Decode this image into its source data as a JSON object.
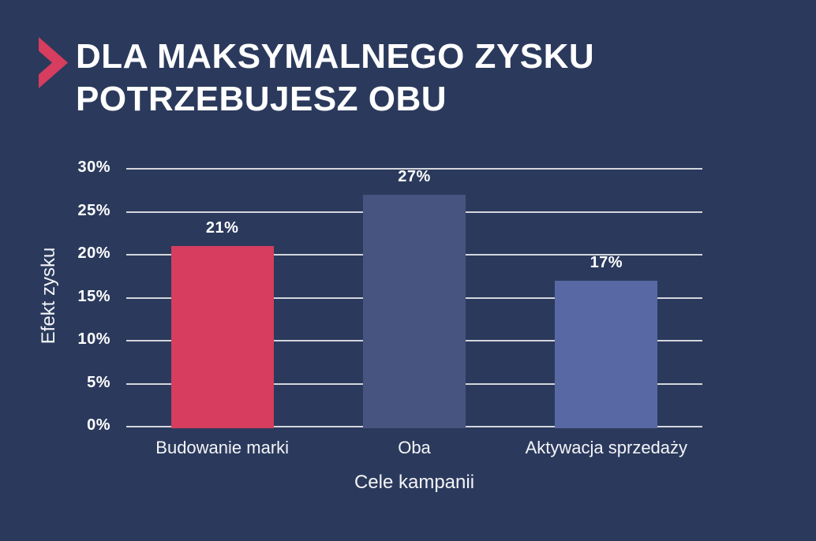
{
  "slide": {
    "background_color": "#2B3A5C",
    "accent_color": "#D63D5E"
  },
  "header": {
    "title_line1": "DLA MAKSYMALNEGO ZYSKU",
    "title_line2": "POTRZEBUJESZ OBU"
  },
  "chart_data": {
    "type": "bar",
    "categories": [
      "Budowanie marki",
      "Oba",
      "Aktywacja sprzedaży"
    ],
    "values": [
      21,
      27,
      17
    ],
    "value_labels": [
      "21%",
      "27%",
      "17%"
    ],
    "bar_colors": [
      "#D63D5E",
      "#475480",
      "#5768A4"
    ],
    "xlabel": "Cele kampanii",
    "ylabel": "Efekt zysku",
    "ylim": [
      0,
      30
    ],
    "yticks": [
      "30%",
      "25%",
      "20%",
      "15%",
      "10%",
      "5%",
      "0%"
    ],
    "grid": true,
    "gridline_color": "#D4D6DC",
    "legend_position": "none"
  }
}
